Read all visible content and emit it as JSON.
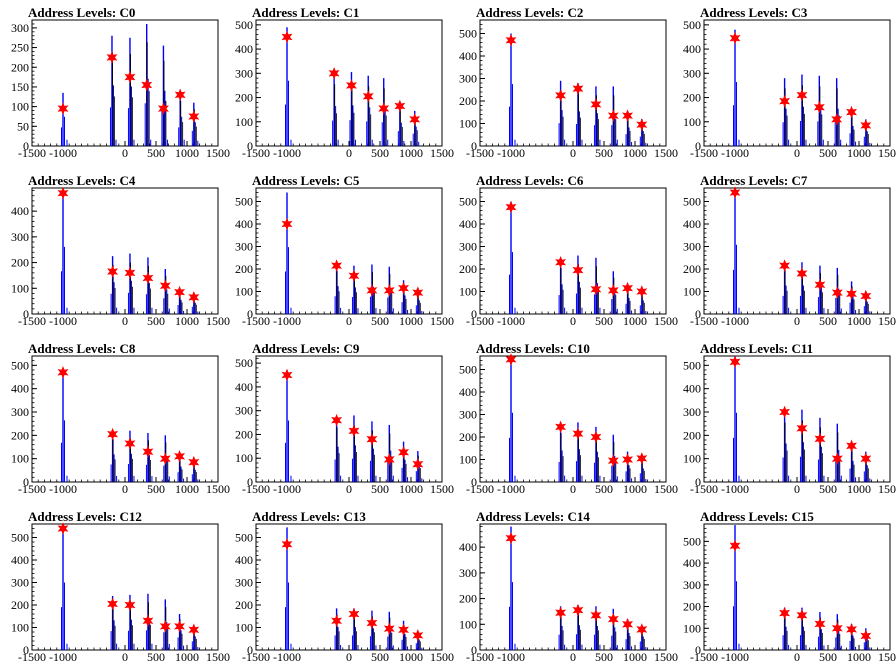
{
  "colors": {
    "histogram": "#0000ff",
    "overlay": "#000000",
    "marker": "#ff0000",
    "frame": "#000000"
  },
  "marker_icon": "star-marker-icon",
  "chart_data": [
    {
      "type": "line",
      "title": "Address Levels: C0",
      "xlim": [
        -1500,
        1500
      ],
      "ylim": [
        0,
        320
      ],
      "xticks": [
        -1500,
        -1000,
        0,
        500,
        1000,
        1500
      ],
      "xtick_labels": [
        "-1500",
        "-1000",
        "0",
        "500",
        "1000",
        "1500"
      ],
      "yticks": [
        0,
        50,
        100,
        150,
        200,
        250,
        300
      ],
      "peaks_x": [
        -1000,
        -210,
        80,
        350,
        620,
        890,
        1110
      ],
      "hist_heights": [
        135,
        280,
        275,
        310,
        255,
        135,
        110
      ],
      "marker_values": [
        95,
        225,
        175,
        155,
        95,
        130,
        75
      ]
    },
    {
      "type": "line",
      "title": "Address Levels: C1",
      "xlim": [
        -1500,
        1500
      ],
      "ylim": [
        0,
        520
      ],
      "xticks": [
        -1500,
        -1000,
        0,
        500,
        1000,
        1500
      ],
      "xtick_labels": [
        "-1500",
        "-1000",
        "0",
        "500",
        "1000",
        "1500"
      ],
      "yticks": [
        0,
        100,
        200,
        300,
        400,
        500
      ],
      "peaks_x": [
        -1000,
        -240,
        40,
        310,
        560,
        820,
        1060
      ],
      "hist_heights": [
        490,
        300,
        305,
        290,
        280,
        175,
        145
      ],
      "marker_values": [
        450,
        300,
        250,
        205,
        155,
        165,
        110
      ]
    },
    {
      "type": "line",
      "title": "Address Levels: C2",
      "xlim": [
        -1500,
        1500
      ],
      "ylim": [
        0,
        560
      ],
      "xticks": [
        -1500,
        -1000,
        0,
        500,
        1000,
        1500
      ],
      "xtick_labels": [
        "-1500",
        "-1000",
        "0",
        "500",
        "1000",
        "1500"
      ],
      "yticks": [
        0,
        100,
        200,
        300,
        400,
        500
      ],
      "peaks_x": [
        -1000,
        -200,
        80,
        370,
        650,
        880,
        1110
      ],
      "hist_heights": [
        500,
        290,
        280,
        265,
        265,
        150,
        120
      ],
      "marker_values": [
        470,
        225,
        255,
        185,
        135,
        135,
        95
      ]
    },
    {
      "type": "line",
      "title": "Address Levels: C3",
      "xlim": [
        -1500,
        1500
      ],
      "ylim": [
        0,
        520
      ],
      "xticks": [
        -1500,
        -1000,
        0,
        500,
        1000,
        1500
      ],
      "xtick_labels": [
        "-1500",
        "-1000",
        "0",
        "500",
        "1000",
        "1500"
      ],
      "yticks": [
        0,
        100,
        200,
        300,
        400,
        500
      ],
      "peaks_x": [
        -1000,
        -200,
        80,
        360,
        640,
        880,
        1110
      ],
      "hist_heights": [
        480,
        280,
        295,
        290,
        280,
        150,
        110
      ],
      "marker_values": [
        445,
        185,
        210,
        160,
        110,
        140,
        85
      ]
    },
    {
      "type": "line",
      "title": "Address Levels: C4",
      "xlim": [
        -1500,
        1500
      ],
      "ylim": [
        0,
        490
      ],
      "xticks": [
        -1500,
        -1000,
        0,
        500,
        1000,
        1500
      ],
      "xtick_labels": [
        "-1500",
        "-1000",
        "0",
        "500",
        "1000",
        "1500"
      ],
      "yticks": [
        0,
        100,
        200,
        300,
        400
      ],
      "peaks_x": [
        -1000,
        -200,
        80,
        370,
        650,
        880,
        1110
      ],
      "hist_heights": [
        475,
        225,
        235,
        220,
        175,
        100,
        80
      ],
      "marker_values": [
        470,
        165,
        160,
        140,
        110,
        85,
        65
      ]
    },
    {
      "type": "line",
      "title": "Address Levels: C5",
      "xlim": [
        -1500,
        1500
      ],
      "ylim": [
        0,
        560
      ],
      "xticks": [
        -1500,
        -1000,
        0,
        500,
        1000,
        1500
      ],
      "xtick_labels": [
        "-1500",
        "-1000",
        "0",
        "500",
        "1000",
        "1500"
      ],
      "yticks": [
        0,
        100,
        200,
        300,
        400,
        500
      ],
      "peaks_x": [
        -1000,
        -200,
        80,
        370,
        650,
        880,
        1110
      ],
      "hist_heights": [
        540,
        225,
        215,
        220,
        210,
        150,
        110
      ],
      "marker_values": [
        400,
        215,
        170,
        105,
        105,
        115,
        95
      ]
    },
    {
      "type": "line",
      "title": "Address Levels: C6",
      "xlim": [
        -1500,
        1500
      ],
      "ylim": [
        0,
        560
      ],
      "xticks": [
        -1500,
        -1000,
        0,
        500,
        1000,
        1500
      ],
      "xtick_labels": [
        "-1500",
        "-1000",
        "0",
        "500",
        "1000",
        "1500"
      ],
      "yticks": [
        0,
        100,
        200,
        300,
        400,
        500
      ],
      "peaks_x": [
        -1000,
        -200,
        80,
        370,
        650,
        880,
        1110
      ],
      "hist_heights": [
        500,
        240,
        260,
        250,
        190,
        130,
        110
      ],
      "marker_values": [
        475,
        230,
        195,
        110,
        105,
        115,
        100
      ]
    },
    {
      "type": "line",
      "title": "Address Levels: C7",
      "xlim": [
        -1500,
        1500
      ],
      "ylim": [
        0,
        560
      ],
      "xticks": [
        -1500,
        -1000,
        0,
        500,
        1000,
        1500
      ],
      "xtick_labels": [
        "-1500",
        "-1000",
        "0",
        "500",
        "1000",
        "1500"
      ],
      "yticks": [
        0,
        100,
        200,
        300,
        400,
        500
      ],
      "peaks_x": [
        -1000,
        -200,
        80,
        370,
        650,
        880,
        1110
      ],
      "hist_heights": [
        560,
        230,
        230,
        215,
        205,
        145,
        100
      ],
      "marker_values": [
        540,
        215,
        180,
        130,
        95,
        90,
        80
      ]
    },
    {
      "type": "line",
      "title": "Address Levels: C8",
      "xlim": [
        -1500,
        1500
      ],
      "ylim": [
        0,
        540
      ],
      "xticks": [
        -1500,
        -1000,
        0,
        500,
        1000,
        1500
      ],
      "xtick_labels": [
        "-1500",
        "-1000",
        "0",
        "500",
        "1000",
        "1500"
      ],
      "yticks": [
        0,
        100,
        200,
        300,
        400,
        500
      ],
      "peaks_x": [
        -1000,
        -200,
        80,
        370,
        650,
        880,
        1110
      ],
      "hist_heights": [
        480,
        215,
        220,
        210,
        200,
        120,
        95
      ],
      "marker_values": [
        470,
        205,
        165,
        130,
        100,
        110,
        85
      ]
    },
    {
      "type": "line",
      "title": "Address Levels: C9",
      "xlim": [
        -1500,
        1500
      ],
      "ylim": [
        0,
        530
      ],
      "xticks": [
        -1500,
        -1000,
        0,
        500,
        1000,
        1500
      ],
      "xtick_labels": [
        "-1500",
        "-1000",
        "0",
        "500",
        "1000",
        "1500"
      ],
      "yticks": [
        0,
        100,
        200,
        300,
        400,
        500
      ],
      "peaks_x": [
        -1000,
        -200,
        80,
        370,
        650,
        880,
        1110
      ],
      "hist_heights": [
        470,
        270,
        280,
        255,
        240,
        170,
        130
      ],
      "marker_values": [
        450,
        260,
        215,
        180,
        95,
        125,
        75
      ]
    },
    {
      "type": "line",
      "title": "Address Levels: C10",
      "xlim": [
        -1500,
        1500
      ],
      "ylim": [
        0,
        560
      ],
      "xticks": [
        -1500,
        -1000,
        0,
        500,
        1000,
        1500
      ],
      "xtick_labels": [
        "-1500",
        "-1000",
        "0",
        "500",
        "1000",
        "1500"
      ],
      "yticks": [
        0,
        100,
        200,
        300,
        400,
        500
      ],
      "peaks_x": [
        -1000,
        -200,
        80,
        370,
        650,
        880,
        1110
      ],
      "hist_heights": [
        560,
        255,
        265,
        245,
        210,
        135,
        110
      ],
      "marker_values": [
        545,
        245,
        215,
        200,
        95,
        100,
        105
      ]
    },
    {
      "type": "line",
      "title": "Address Levels: C11",
      "xlim": [
        -1500,
        1500
      ],
      "ylim": [
        0,
        540
      ],
      "xticks": [
        -1500,
        -1000,
        0,
        500,
        1000,
        1500
      ],
      "xtick_labels": [
        "-1500",
        "-1000",
        "0",
        "500",
        "1000",
        "1500"
      ],
      "yticks": [
        0,
        100,
        200,
        300,
        400,
        500
      ],
      "peaks_x": [
        -1000,
        -200,
        80,
        370,
        650,
        880,
        1110
      ],
      "hist_heights": [
        540,
        300,
        310,
        275,
        250,
        165,
        130
      ],
      "marker_values": [
        515,
        300,
        230,
        185,
        100,
        155,
        100
      ]
    },
    {
      "type": "line",
      "title": "Address Levels: C12",
      "xlim": [
        -1500,
        1500
      ],
      "ylim": [
        0,
        560
      ],
      "xticks": [
        -1500,
        -1000,
        0,
        500,
        1000,
        1500
      ],
      "xtick_labels": [
        "-1500",
        "-1000",
        "0",
        "500",
        "1000",
        "1500"
      ],
      "yticks": [
        0,
        100,
        200,
        300,
        400,
        500
      ],
      "peaks_x": [
        -1000,
        -200,
        80,
        370,
        650,
        880,
        1110
      ],
      "hist_heights": [
        545,
        240,
        245,
        250,
        225,
        160,
        110
      ],
      "marker_values": [
        540,
        205,
        200,
        130,
        105,
        105,
        90
      ]
    },
    {
      "type": "line",
      "title": "Address Levels: C13",
      "xlim": [
        -1500,
        1500
      ],
      "ylim": [
        0,
        560
      ],
      "xticks": [
        -1500,
        -1000,
        0,
        500,
        1000,
        1500
      ],
      "xtick_labels": [
        "-1500",
        "-1000",
        "0",
        "500",
        "1000",
        "1500"
      ],
      "yticks": [
        0,
        100,
        200,
        300,
        400,
        500
      ],
      "peaks_x": [
        -1000,
        -200,
        80,
        370,
        650,
        880,
        1110
      ],
      "hist_heights": [
        545,
        185,
        185,
        175,
        170,
        130,
        85
      ],
      "marker_values": [
        470,
        130,
        160,
        120,
        95,
        90,
        65
      ]
    },
    {
      "type": "line",
      "title": "Address Levels: C14",
      "xlim": [
        -1500,
        1500
      ],
      "ylim": [
        0,
        490
      ],
      "xticks": [
        -1500,
        -1000,
        0,
        500,
        1000,
        1500
      ],
      "xtick_labels": [
        "-1500",
        "-1000",
        "0",
        "500",
        "1000",
        "1500"
      ],
      "yticks": [
        0,
        100,
        200,
        300,
        400
      ],
      "peaks_x": [
        -1000,
        -200,
        80,
        370,
        650,
        880,
        1110
      ],
      "hist_heights": [
        480,
        170,
        175,
        170,
        160,
        120,
        95
      ],
      "marker_values": [
        435,
        145,
        155,
        135,
        120,
        100,
        80
      ]
    },
    {
      "type": "line",
      "title": "Address Levels: C15",
      "xlim": [
        -1500,
        1500
      ],
      "ylim": [
        0,
        580
      ],
      "xticks": [
        -1500,
        -1000,
        0,
        500,
        1000,
        1500
      ],
      "xtick_labels": [
        "-1500",
        "-1000",
        "0",
        "500",
        "1000",
        "1500"
      ],
      "yticks": [
        0,
        100,
        200,
        300,
        400,
        500
      ],
      "peaks_x": [
        -1000,
        -200,
        80,
        370,
        650,
        880,
        1110
      ],
      "hist_heights": [
        575,
        195,
        195,
        175,
        165,
        120,
        100
      ],
      "marker_values": [
        480,
        170,
        160,
        120,
        100,
        95,
        65
      ]
    }
  ]
}
